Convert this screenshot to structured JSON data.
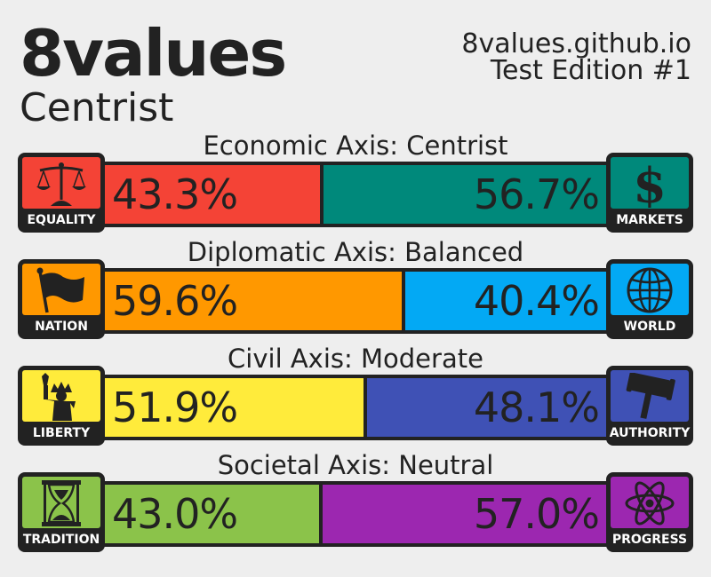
{
  "header": {
    "title": "8values",
    "ideology": "Centrist",
    "site": "8values.github.io",
    "edition": "Test Edition #1"
  },
  "axes": [
    {
      "label": "Economic Axis: Centrist",
      "left": {
        "name": "EQUALITY",
        "percent_text": "43.3%",
        "color": "#f44336",
        "icon": "scales-icon"
      },
      "right": {
        "name": "MARKETS",
        "percent_text": "56.7%",
        "color": "#00897b",
        "icon": "dollar-icon"
      }
    },
    {
      "label": "Diplomatic Axis: Balanced",
      "left": {
        "name": "NATION",
        "percent_text": "59.6%",
        "color": "#ff9800",
        "icon": "flag-icon"
      },
      "right": {
        "name": "WORLD",
        "percent_text": "40.4%",
        "color": "#03a9f4",
        "icon": "globe-icon"
      }
    },
    {
      "label": "Civil Axis: Moderate",
      "left": {
        "name": "LIBERTY",
        "percent_text": "51.9%",
        "color": "#ffeb3b",
        "icon": "statue-of-liberty-icon"
      },
      "right": {
        "name": "AUTHORITY",
        "percent_text": "48.1%",
        "color": "#3f51b5",
        "icon": "gavel-icon"
      }
    },
    {
      "label": "Societal Axis: Neutral",
      "left": {
        "name": "TRADITION",
        "percent_text": "43.0%",
        "color": "#8bc34a",
        "icon": "hourglass-icon"
      },
      "right": {
        "name": "PROGRESS",
        "percent_text": "57.0%",
        "color": "#9c27b0",
        "icon": "atom-icon"
      }
    }
  ],
  "chart_data": {
    "type": "bar",
    "categories": [
      "Economic Axis: Centrist",
      "Diplomatic Axis: Balanced",
      "Civil Axis: Moderate",
      "Societal Axis: Neutral"
    ],
    "series": [
      {
        "name": "left",
        "values": [
          43.3,
          59.6,
          51.9,
          43.0
        ]
      },
      {
        "name": "right",
        "values": [
          56.7,
          40.4,
          48.1,
          57.0
        ]
      }
    ],
    "title": "8values",
    "ylim": [
      0,
      100
    ]
  }
}
